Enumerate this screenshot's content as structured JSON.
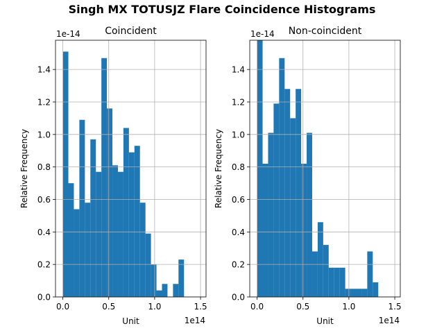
{
  "figure": {
    "title": "Singh MX TOTUSJZ Flare Coincidence Histograms",
    "bar_color": "#1f77b4",
    "grid_color": "#b0b0b0"
  },
  "chart_data": [
    {
      "type": "bar",
      "subtitle": "Coincident",
      "xlabel": "Unit",
      "ylabel": "Relative Frequency",
      "x_offset_label": "1e14",
      "y_offset_label": "1e-14",
      "xlim": [
        -0.08,
        1.56
      ],
      "ylim": [
        0,
        1.58
      ],
      "x_ticks": [
        0.0,
        0.5,
        1.0,
        1.5
      ],
      "x_tick_labels": [
        "0.0",
        "0.5",
        "1.0",
        "1.5"
      ],
      "y_ticks": [
        0.0,
        0.2,
        0.4,
        0.6,
        0.8,
        1.0,
        1.2,
        1.4
      ],
      "y_tick_labels": [
        "0.0",
        "0.2",
        "0.4",
        "0.6",
        "0.8",
        "1.0",
        "1.2",
        "1.4"
      ],
      "grid": true,
      "bin_start": 0.0,
      "bin_width": 0.06,
      "values": [
        1.51,
        0.7,
        0.54,
        1.09,
        0.58,
        0.97,
        0.77,
        1.47,
        1.16,
        0.81,
        0.77,
        1.04,
        0.89,
        0.93,
        0.58,
        0.39,
        0.2,
        0.04,
        0.08,
        0.0,
        0.08,
        0.23
      ]
    },
    {
      "type": "bar",
      "subtitle": "Non-coincident",
      "xlabel": "Unit",
      "ylabel": "Relative Frequency",
      "x_offset_label": "1e14",
      "y_offset_label": "1e-14",
      "xlim": [
        -0.08,
        1.56
      ],
      "ylim": [
        0,
        1.58
      ],
      "x_ticks": [
        0.0,
        0.5,
        1.0,
        1.5
      ],
      "x_tick_labels": [
        "0.0",
        "0.5",
        "1.0",
        "1.5"
      ],
      "y_ticks": [
        0.0,
        0.2,
        0.4,
        0.6,
        0.8,
        1.0,
        1.2,
        1.4
      ],
      "y_tick_labels": [
        "0.0",
        "0.2",
        "0.4",
        "0.6",
        "0.8",
        "1.0",
        "1.2",
        "1.4"
      ],
      "grid": true,
      "bin_start": 0.0,
      "bin_width": 0.06,
      "values": [
        1.58,
        0.82,
        1.01,
        1.19,
        1.47,
        1.28,
        1.1,
        1.28,
        0.82,
        1.01,
        0.28,
        0.46,
        0.32,
        0.18,
        0.18,
        0.18,
        0.05,
        0.05,
        0.05,
        0.05,
        0.28,
        0.09
      ]
    }
  ]
}
